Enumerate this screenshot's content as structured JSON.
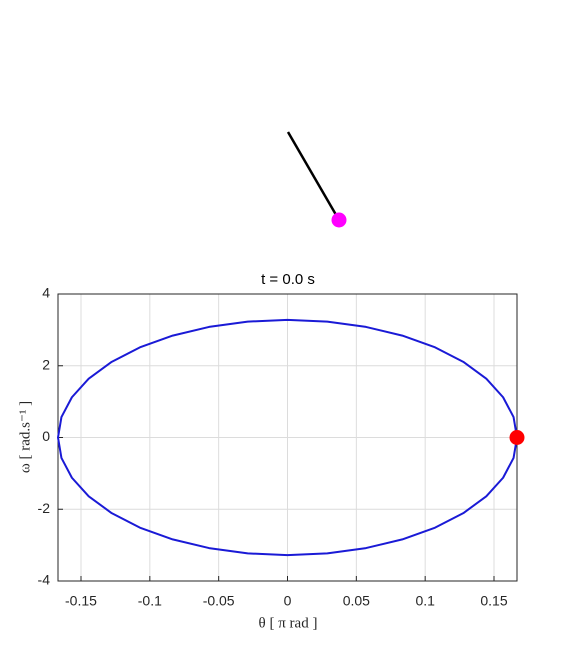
{
  "chart_data": {
    "type": "line",
    "title": "t =  0.0  s",
    "x_label": "θ  [ π rad ]",
    "y_label": "ω  [ rad.s⁻¹ ]",
    "xlim": [
      -0.1667,
      0.1667
    ],
    "xticks": [
      -0.15,
      -0.1,
      -0.05,
      0,
      0.05,
      0.1,
      0.15
    ],
    "ylim": [
      -4,
      4
    ],
    "yticks": [
      -4,
      -2,
      0,
      2,
      4
    ],
    "grid": true,
    "series": [
      {
        "color": "#1a1ad6",
        "marker": false,
        "x": [
          0.1667,
          0.1642,
          0.1566,
          0.1444,
          0.1277,
          0.1072,
          0.0834,
          0.057,
          0.0289,
          0,
          -0.0289,
          -0.057,
          -0.0834,
          -0.1072,
          -0.1277,
          -0.1444,
          -0.1566,
          -0.1642,
          -0.1667,
          -0.1642,
          -0.1566,
          -0.1444,
          -0.1277,
          -0.1072,
          -0.0834,
          -0.057,
          -0.0289,
          0,
          0.0289,
          0.057,
          0.0834,
          0.1072,
          0.1277,
          0.1444,
          0.1566,
          0.1642,
          0.1667
        ],
        "values": [
          0,
          -0.5696,
          -1.1218,
          -1.64,
          -2.1083,
          -2.5126,
          -2.8406,
          -3.0822,
          -3.2302,
          -3.28,
          -3.2302,
          -3.0822,
          -2.8406,
          -2.5126,
          -2.1083,
          -1.64,
          -1.1218,
          -0.5696,
          0,
          0.5696,
          1.1218,
          1.64,
          2.1083,
          2.5126,
          2.8406,
          3.0822,
          3.2302,
          3.28,
          3.2302,
          3.0822,
          2.8406,
          2.5126,
          2.1083,
          1.64,
          1.1218,
          0.5696,
          0
        ]
      },
      {
        "color": "#ff0000",
        "marker": true,
        "x": [
          0.1667
        ],
        "values": [
          0
        ]
      }
    ]
  }
}
